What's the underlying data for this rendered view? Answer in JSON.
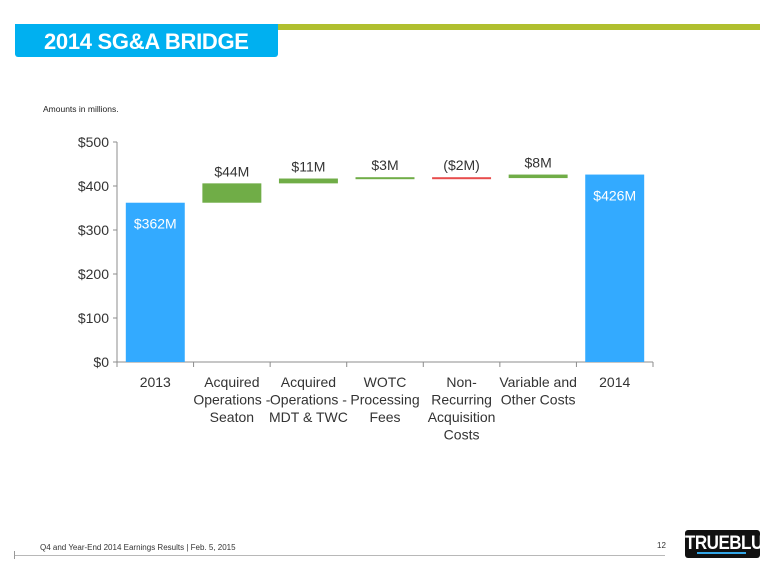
{
  "header": {
    "title": "2014 SG&A BRIDGE",
    "banner_color": "#00b0f0",
    "accent_color": "#b0bf2f"
  },
  "note": "Amounts in millions.",
  "chart_data": {
    "type": "bar",
    "subtype": "waterfall",
    "title": "2014 SG&A Bridge",
    "xlabel": "",
    "ylabel": "",
    "ylim": [
      0,
      500
    ],
    "yticks": [
      0,
      100,
      200,
      300,
      400,
      500
    ],
    "ytick_labels": [
      "$0",
      "$100",
      "$200",
      "$300",
      "$400",
      "$500"
    ],
    "grid": false,
    "categories": [
      [
        "2013"
      ],
      [
        "Acquired",
        "Operations -",
        "Seaton"
      ],
      [
        "Acquired",
        "Operations -",
        "MDT & TWC"
      ],
      [
        "WOTC",
        "Processing",
        "Fees"
      ],
      [
        "Non-",
        "Recurring",
        "Acquisition",
        "Costs"
      ],
      [
        "Variable and",
        "Other Costs"
      ],
      [
        "2014"
      ]
    ],
    "bars": [
      {
        "kind": "total",
        "start": 0,
        "end": 362,
        "value": 362,
        "label": "$362M",
        "color": "#33aaff"
      },
      {
        "kind": "increase",
        "start": 362,
        "end": 406,
        "value": 44,
        "label": "$44M",
        "color": "#70ad47"
      },
      {
        "kind": "increase",
        "start": 406,
        "end": 417,
        "value": 11,
        "label": "$11M",
        "color": "#70ad47"
      },
      {
        "kind": "increase",
        "start": 417,
        "end": 420,
        "value": 3,
        "label": "$3M",
        "color": "#70ad47"
      },
      {
        "kind": "decrease",
        "start": 420,
        "end": 418,
        "value": -2,
        "label": "($2M)",
        "color": "#e84c4c"
      },
      {
        "kind": "increase",
        "start": 418,
        "end": 426,
        "value": 8,
        "label": "$8M",
        "color": "#70ad47"
      },
      {
        "kind": "total",
        "start": 0,
        "end": 426,
        "value": 426,
        "label": "$426M",
        "color": "#33aaff"
      }
    ]
  },
  "footer": {
    "text": "Q4 and Year-End 2014 Earnings Results | Feb. 5, 2015",
    "page_number": "12",
    "logo_text": "TRUEBLUE"
  }
}
